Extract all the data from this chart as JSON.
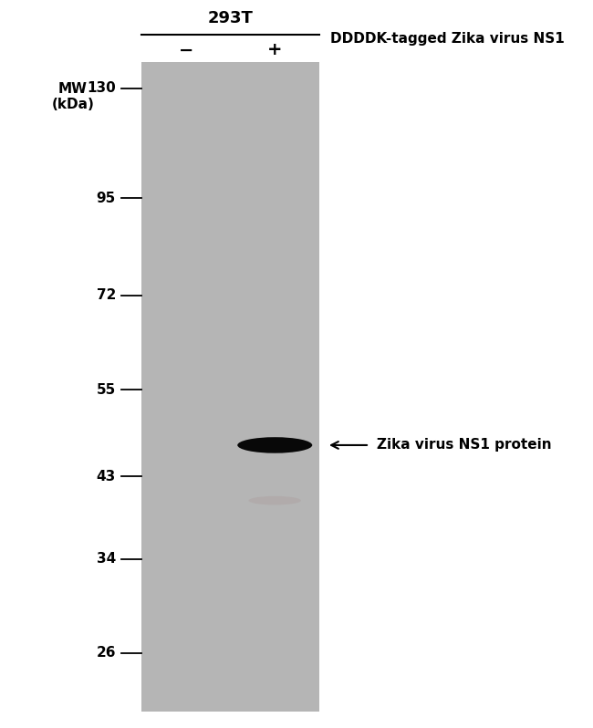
{
  "background_color": "#ffffff",
  "gel_color": "#b5b5b5",
  "mw_label": "MW\n(kDa)",
  "cell_line_label": "293T",
  "col_labels": [
    "−",
    "+"
  ],
  "header_label": "DDDDK-tagged Zika virus NS1",
  "mw_markers": [
    130,
    95,
    72,
    55,
    43,
    34,
    26
  ],
  "band_color": "#080808",
  "faint_band_color": "#b0a8a8",
  "arrow_label": "Zika virus NS1 protein"
}
